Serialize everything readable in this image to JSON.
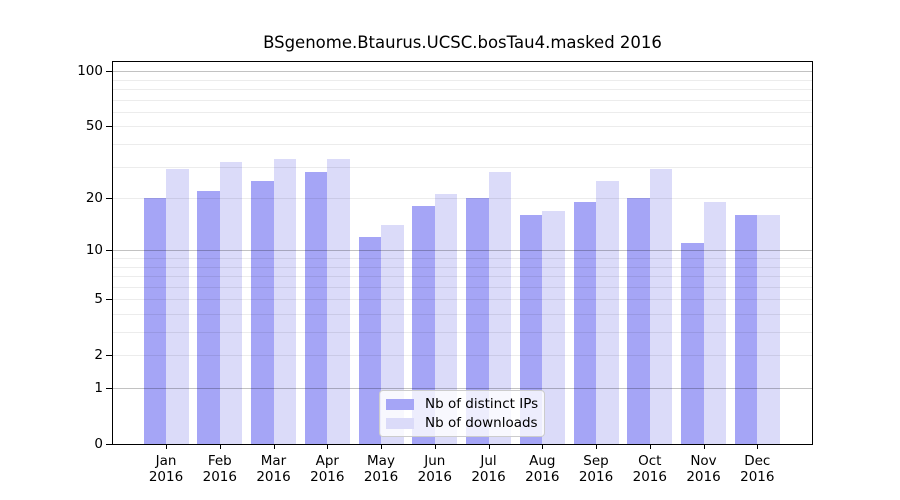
{
  "chart_data": {
    "type": "bar",
    "title": "BSgenome.Btaurus.UCSC.bosTau4.masked 2016",
    "categories": [
      "Jan",
      "Feb",
      "Mar",
      "Apr",
      "May",
      "Jun",
      "Jul",
      "Aug",
      "Sep",
      "Oct",
      "Nov",
      "Dec"
    ],
    "year_label": "2016",
    "series": [
      {
        "name": "Nb of distinct IPs",
        "color": "#a5a5f6",
        "values": [
          20,
          22,
          25,
          28,
          12,
          18,
          20,
          16,
          19,
          20,
          11,
          16
        ]
      },
      {
        "name": "Nb of downloads",
        "color": "#dbdbf9",
        "values": [
          29,
          32,
          33,
          33,
          14,
          21,
          28,
          17,
          25,
          29,
          19,
          16
        ]
      }
    ],
    "xlabel": "",
    "ylabel": "",
    "yscale": "log1p",
    "ylim": [
      0,
      112
    ],
    "yticks": [
      100,
      50,
      20,
      10,
      5,
      2,
      1,
      0
    ],
    "gridlines_minor": [
      2,
      3,
      4,
      5,
      6,
      7,
      8,
      9,
      20,
      30,
      40,
      50,
      60,
      70,
      80,
      90
    ],
    "gridlines_major": [
      1,
      10,
      100
    ],
    "grid": true,
    "legend_position": "lower center",
    "colors": {
      "frame": "#000000",
      "grid_minor": "#ececec",
      "grid_major": "#c2c2c2",
      "legend_border": "#cccccc"
    }
  }
}
